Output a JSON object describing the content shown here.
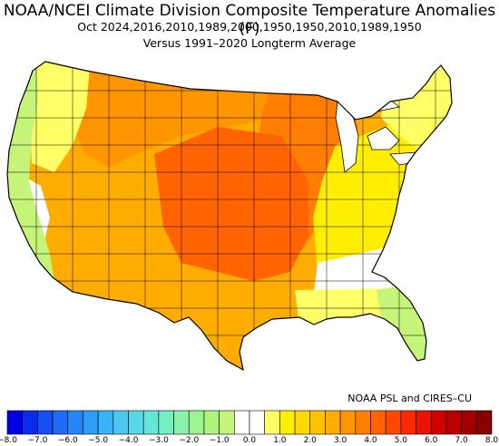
{
  "title": "NOAA/NCEI Climate Division Composite Temperature Anomalies (F)",
  "subtitle_line1": "Oct  2024,2016,2010,1989,2000,1950,1950,2010,1989,1950",
  "subtitle_line2": "Versus 1991–2020 Longterm Average",
  "credit": "NOAA PSL and CIRES–CU",
  "colors": {
    "lake": "#ffffff",
    "border": "#000000"
  },
  "colorbar": {
    "bins": [
      {
        "from": -8.0,
        "to": -7.5,
        "color": "#0000e6"
      },
      {
        "from": -7.5,
        "to": -7.0,
        "color": "#0a2cf0"
      },
      {
        "from": -7.0,
        "to": -6.5,
        "color": "#1650f5"
      },
      {
        "from": -6.5,
        "to": -6.0,
        "color": "#1e6cf7"
      },
      {
        "from": -6.0,
        "to": -5.5,
        "color": "#2586f8"
      },
      {
        "from": -5.5,
        "to": -5.0,
        "color": "#2e9ef9"
      },
      {
        "from": -5.0,
        "to": -4.5,
        "color": "#3ab4f8"
      },
      {
        "from": -4.5,
        "to": -4.0,
        "color": "#4ac8f2"
      },
      {
        "from": -4.0,
        "to": -3.5,
        "color": "#58d8e6"
      },
      {
        "from": -3.5,
        "to": -3.0,
        "color": "#66e6d6"
      },
      {
        "from": -3.0,
        "to": -2.5,
        "color": "#76eec2"
      },
      {
        "from": -2.5,
        "to": -2.0,
        "color": "#88f2aa"
      },
      {
        "from": -2.0,
        "to": -1.5,
        "color": "#9cf490"
      },
      {
        "from": -1.5,
        "to": -1.0,
        "color": "#aef47a"
      },
      {
        "from": -1.0,
        "to": -0.5,
        "color": "#c4f478"
      },
      {
        "from": -0.5,
        "to": 0.0,
        "color": "#ffffff"
      },
      {
        "from": 0.0,
        "to": 0.5,
        "color": "#ffffff"
      },
      {
        "from": 0.5,
        "to": 1.0,
        "color": "#ffff66"
      },
      {
        "from": 1.0,
        "to": 1.5,
        "color": "#ffee00"
      },
      {
        "from": 1.5,
        "to": 2.0,
        "color": "#ffd800"
      },
      {
        "from": 2.0,
        "to": 2.5,
        "color": "#ffc200"
      },
      {
        "from": 2.5,
        "to": 3.0,
        "color": "#ffac00"
      },
      {
        "from": 3.0,
        "to": 3.5,
        "color": "#ff9600"
      },
      {
        "from": 3.5,
        "to": 4.0,
        "color": "#ff7e00"
      },
      {
        "from": 4.0,
        "to": 4.5,
        "color": "#ff6400"
      },
      {
        "from": 4.5,
        "to": 5.0,
        "color": "#ff4a00"
      },
      {
        "from": 5.0,
        "to": 5.5,
        "color": "#f82a00"
      },
      {
        "from": 5.5,
        "to": 6.0,
        "color": "#e81400"
      },
      {
        "from": 6.0,
        "to": 6.5,
        "color": "#d00000"
      },
      {
        "from": 6.5,
        "to": 7.0,
        "color": "#b80000"
      },
      {
        "from": 7.0,
        "to": 7.5,
        "color": "#a00000"
      },
      {
        "from": 7.5,
        "to": 8.0,
        "color": "#880000"
      }
    ],
    "tick_labels": [
      "−8.0",
      "−7.0",
      "−6.0",
      "−5.0",
      "−4.0",
      "−3.0",
      "−2.0",
      "−1.0",
      "0.0",
      "1.0",
      "2.0",
      "3.0",
      "4.0",
      "5.0",
      "6.0",
      "7.0",
      "8.0"
    ],
    "tick_values": [
      -8,
      -7,
      -6,
      -5,
      -4,
      -3,
      -2,
      -1,
      0,
      1,
      2,
      3,
      4,
      5,
      6,
      7,
      8
    ]
  },
  "regions": [
    {
      "name": "pacific-coast",
      "anomaly": -0.8
    },
    {
      "name": "inland-northwest",
      "anomaly": 0.9
    },
    {
      "name": "california-interior",
      "anomaly": 0.3
    },
    {
      "name": "great-basin-southwest",
      "anomaly": 2.6
    },
    {
      "name": "northern-rockies-plains",
      "anomaly": 3.1
    },
    {
      "name": "central-plains",
      "anomaly": 4.4
    },
    {
      "name": "southern-plains-texas",
      "anomaly": 2.8
    },
    {
      "name": "upper-midwest",
      "anomaly": 3.6
    },
    {
      "name": "ohio-valley-east",
      "anomaly": 1.3
    },
    {
      "name": "northeast",
      "anomaly": 0.8
    },
    {
      "name": "southeast",
      "anomaly": 0.2
    },
    {
      "name": "gulf-coast",
      "anomaly": 0.9
    },
    {
      "name": "florida",
      "anomaly": -0.9
    }
  ]
}
